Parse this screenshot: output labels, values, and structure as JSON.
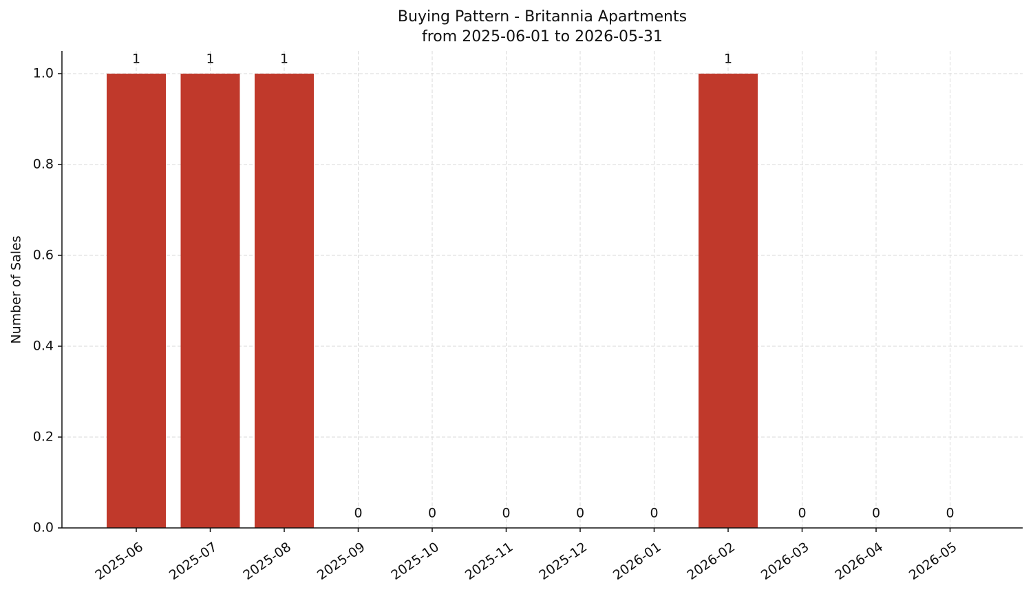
{
  "chart_data": {
    "type": "bar",
    "title": "Buying Pattern - Britannia Apartments",
    "subtitle": "from 2025-06-01 to 2026-05-31",
    "y_label": "Number of Sales",
    "categories": [
      "2025-06",
      "2025-07",
      "2025-08",
      "2025-09",
      "2025-10",
      "2025-11",
      "2025-12",
      "2026-01",
      "2026-02",
      "2026-03",
      "2026-04",
      "2026-05"
    ],
    "values": [
      1,
      1,
      1,
      0,
      0,
      0,
      0,
      0,
      1,
      0,
      0,
      0
    ],
    "color": "#c0392b",
    "ylim": [
      0,
      1.05
    ],
    "yticks": [
      {
        "value": 0,
        "label": "0.0"
      },
      {
        "value": 0.2,
        "label": "0.2"
      },
      {
        "value": 0.4,
        "label": "0.4"
      },
      {
        "value": 0.6,
        "label": "0.6"
      },
      {
        "value": 0.8,
        "label": "0.8"
      },
      {
        "value": 1,
        "label": "1.0"
      }
    ],
    "grid": true
  }
}
